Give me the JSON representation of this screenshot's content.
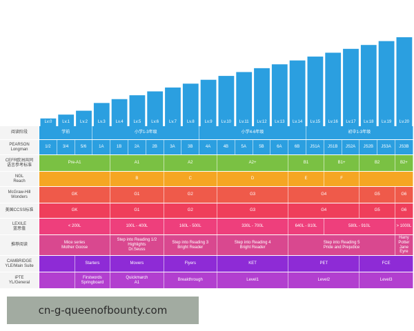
{
  "colors": {
    "bar": "#2b9fe0",
    "row_stage": "#2b9fe0",
    "row_pearson": "#2b9fe0",
    "row_cefr": "#7ac143",
    "row_ngl": "#f5a623",
    "row_mcgraw": "#ef5a4a",
    "row_ccss": "#ef3e5b",
    "row_lexile": "#ee3f7c",
    "row_recommend": "#d9488f",
    "row_cambridge": "#8e2bd6",
    "row_ipte": "#b23fcf"
  },
  "chart_data": {
    "type": "bar",
    "categories": [
      "Lv.0",
      "Lv.1",
      "Lv.2",
      "Lv.3",
      "Lv.4",
      "Lv.5",
      "Lv.6",
      "Lv.7",
      "Lv.8",
      "Lv.9",
      "Lv.10",
      "Lv.11",
      "Lv.12",
      "Lv.13",
      "Lv.14",
      "Lv.15",
      "Lv.16",
      "Lv.17",
      "Lv.18",
      "Lv.19",
      "Lv.20"
    ],
    "values": [
      1,
      1.5,
      2,
      3,
      3.5,
      4,
      4.5,
      5,
      5.5,
      6,
      6.5,
      7,
      7.5,
      8,
      8.5,
      9,
      9.5,
      10,
      10.5,
      11,
      11.5
    ],
    "ylim": [
      0,
      11.5
    ]
  },
  "watermark": "cn-g-queenofbounty.com",
  "rows": [
    {
      "key": "stage",
      "label": "阅读阶段",
      "color": "row_stage",
      "cells": [
        [
          "学前",
          3
        ],
        [
          "小学1-3年级",
          6
        ],
        [
          "小学4-6年级",
          6
        ],
        [
          "初中1-3年级",
          6
        ]
      ]
    },
    {
      "key": "pearson",
      "label": "PEARSON\nLongman",
      "color": "row_pearson",
      "cells": [
        [
          "1/2",
          1
        ],
        [
          "3/4",
          1
        ],
        [
          "5/6",
          1
        ],
        [
          "1A",
          1
        ],
        [
          "1B",
          1
        ],
        [
          "2A",
          1
        ],
        [
          "2B",
          1
        ],
        [
          "3A",
          1
        ],
        [
          "3B",
          1
        ],
        [
          "4A",
          1
        ],
        [
          "4B",
          1
        ],
        [
          "5A",
          1
        ],
        [
          "5B",
          1
        ],
        [
          "6A",
          1
        ],
        [
          "6B",
          1
        ],
        [
          "JS1A",
          1
        ],
        [
          "JS1B",
          1
        ],
        [
          "JS2A",
          1
        ],
        [
          "JS2B",
          1
        ],
        [
          "JS3A",
          1
        ],
        [
          "JS3B",
          1
        ]
      ]
    },
    {
      "key": "cefr",
      "label": "CEFR欧洲共同\n语言参考标准",
      "color": "row_cefr",
      "cells": [
        [
          "Pre-A1",
          4
        ],
        [
          "A1",
          3
        ],
        [
          "A2",
          3
        ],
        [
          "A2+",
          4
        ],
        [
          "B1",
          2
        ],
        [
          "B1+",
          2
        ],
        [
          "B2",
          2
        ],
        [
          "B2+",
          1
        ]
      ]
    },
    {
      "key": "ngl",
      "label": "NGL\nReach",
      "color": "row_ngl",
      "cells": [
        [
          "",
          4
        ],
        [
          "B",
          3
        ],
        [
          "C",
          3
        ],
        [
          "D",
          4
        ],
        [
          "E",
          2
        ],
        [
          "F",
          2
        ],
        [
          "",
          3
        ]
      ]
    },
    {
      "key": "mcgraw",
      "label": "McGraw-Hill\nWonders",
      "color": "row_mcgraw",
      "cells": [
        [
          "GK",
          4
        ],
        [
          "G1",
          3
        ],
        [
          "G2",
          3
        ],
        [
          "G3",
          4
        ],
        [
          "G4",
          4
        ],
        [
          "G5",
          2
        ],
        [
          "G6",
          1
        ]
      ]
    },
    {
      "key": "ccss",
      "label": "美国CCSS标准",
      "color": "row_ccss",
      "cells": [
        [
          "GK",
          4
        ],
        [
          "G1",
          3
        ],
        [
          "G2",
          3
        ],
        [
          "G3",
          4
        ],
        [
          "G4",
          4
        ],
        [
          "G5",
          2
        ],
        [
          "G6",
          1
        ]
      ]
    },
    {
      "key": "lexile",
      "label": "LEXILE\n蓝思值",
      "color": "row_lexile",
      "cells": [
        [
          "< 200L",
          4
        ],
        [
          "100L - 400L",
          3
        ],
        [
          "160L - 500L",
          3
        ],
        [
          "330L - 700L",
          4
        ],
        [
          "640L - 810L",
          2
        ],
        [
          "580L - 910L",
          4
        ],
        [
          "> 1000L",
          1
        ]
      ]
    },
    {
      "key": "recommend",
      "label": "推荐阅读",
      "color": "row_recommend",
      "cells": [
        [
          "Mice series\nMother Goose",
          4
        ],
        [
          "Step into Reading 1/2\nHighlights\nDr.Seuss",
          3
        ],
        [
          "Step into Reading 3\nBright Reader",
          3
        ],
        [
          "Step into Reading 4\nBright Reader",
          4
        ],
        [
          "Step into Reading 5\nPride and Prejudice",
          6
        ],
        [
          "Harry Potter\nJane Eyre",
          1
        ]
      ]
    },
    {
      "key": "cambridge",
      "label": "CAMBRIDGE\nYLE/Main Suite",
      "color": "row_cambridge",
      "cells": [
        [
          "",
          2
        ],
        [
          "Starters",
          2
        ],
        [
          "Movers",
          3
        ],
        [
          "Flyers",
          3
        ],
        [
          "KET",
          4
        ],
        [
          "PET",
          4
        ],
        [
          "FCE",
          3
        ]
      ]
    },
    {
      "key": "ipte",
      "label": "iPTE\nYL/General",
      "color": "row_ipte",
      "cells": [
        [
          "",
          2
        ],
        [
          "Firstwords\nSpringboard",
          2
        ],
        [
          "Quickmarch\nA1",
          3
        ],
        [
          "Breakthrough",
          3
        ],
        [
          "Level1",
          4
        ],
        [
          "Level2",
          4
        ],
        [
          "Level3",
          3
        ]
      ]
    }
  ]
}
